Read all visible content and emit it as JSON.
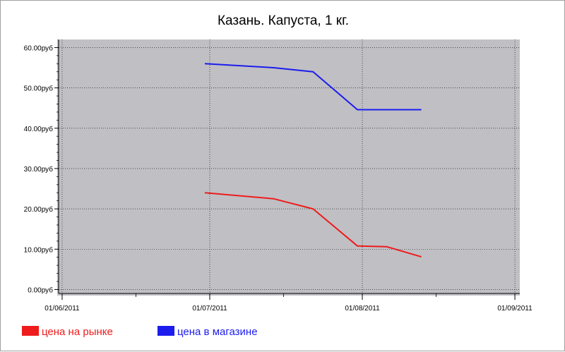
{
  "chart_data": {
    "type": "line",
    "title": "Казань. Капуста, 1 кг.",
    "xlabel": "",
    "ylabel": "",
    "x_ticks": [
      {
        "date": "2011-06-01",
        "label": "01/06/2011"
      },
      {
        "date": "2011-07-01",
        "label": "01/07/2011"
      },
      {
        "date": "2011-08-01",
        "label": "01/08/2011"
      },
      {
        "date": "2011-09-01",
        "label": "01/09/2011"
      }
    ],
    "xlim": [
      "2011-05-31",
      "2011-09-02"
    ],
    "y_ticks": [
      {
        "value": 0,
        "label": "0.00руб"
      },
      {
        "value": 10,
        "label": "10.00руб"
      },
      {
        "value": 20,
        "label": "20.00руб"
      },
      {
        "value": 30,
        "label": "30.00руб"
      },
      {
        "value": 40,
        "label": "40.00руб"
      },
      {
        "value": 50,
        "label": "50.00руб"
      },
      {
        "value": 60,
        "label": "60.00руб"
      }
    ],
    "ylim": [
      -1.5,
      62
    ],
    "grid": true,
    "legend_position": "bottom-left",
    "plot_background": "#c0bfc4",
    "series": [
      {
        "name": "цена на рынке",
        "color": "#ee1c1c",
        "points": [
          {
            "x": "2011-06-30",
            "y": 24.0
          },
          {
            "x": "2011-07-14",
            "y": 22.5
          },
          {
            "x": "2011-07-22",
            "y": 20.0
          },
          {
            "x": "2011-07-31",
            "y": 10.8
          },
          {
            "x": "2011-08-06",
            "y": 10.6
          },
          {
            "x": "2011-08-13",
            "y": 8.1
          }
        ]
      },
      {
        "name": "цена в магазине",
        "color": "#1c1cee",
        "points": [
          {
            "x": "2011-06-30",
            "y": 56.0
          },
          {
            "x": "2011-07-14",
            "y": 55.0
          },
          {
            "x": "2011-07-22",
            "y": 54.0
          },
          {
            "x": "2011-07-31",
            "y": 44.6
          },
          {
            "x": "2011-08-06",
            "y": 44.6
          },
          {
            "x": "2011-08-13",
            "y": 44.6
          }
        ]
      }
    ]
  }
}
